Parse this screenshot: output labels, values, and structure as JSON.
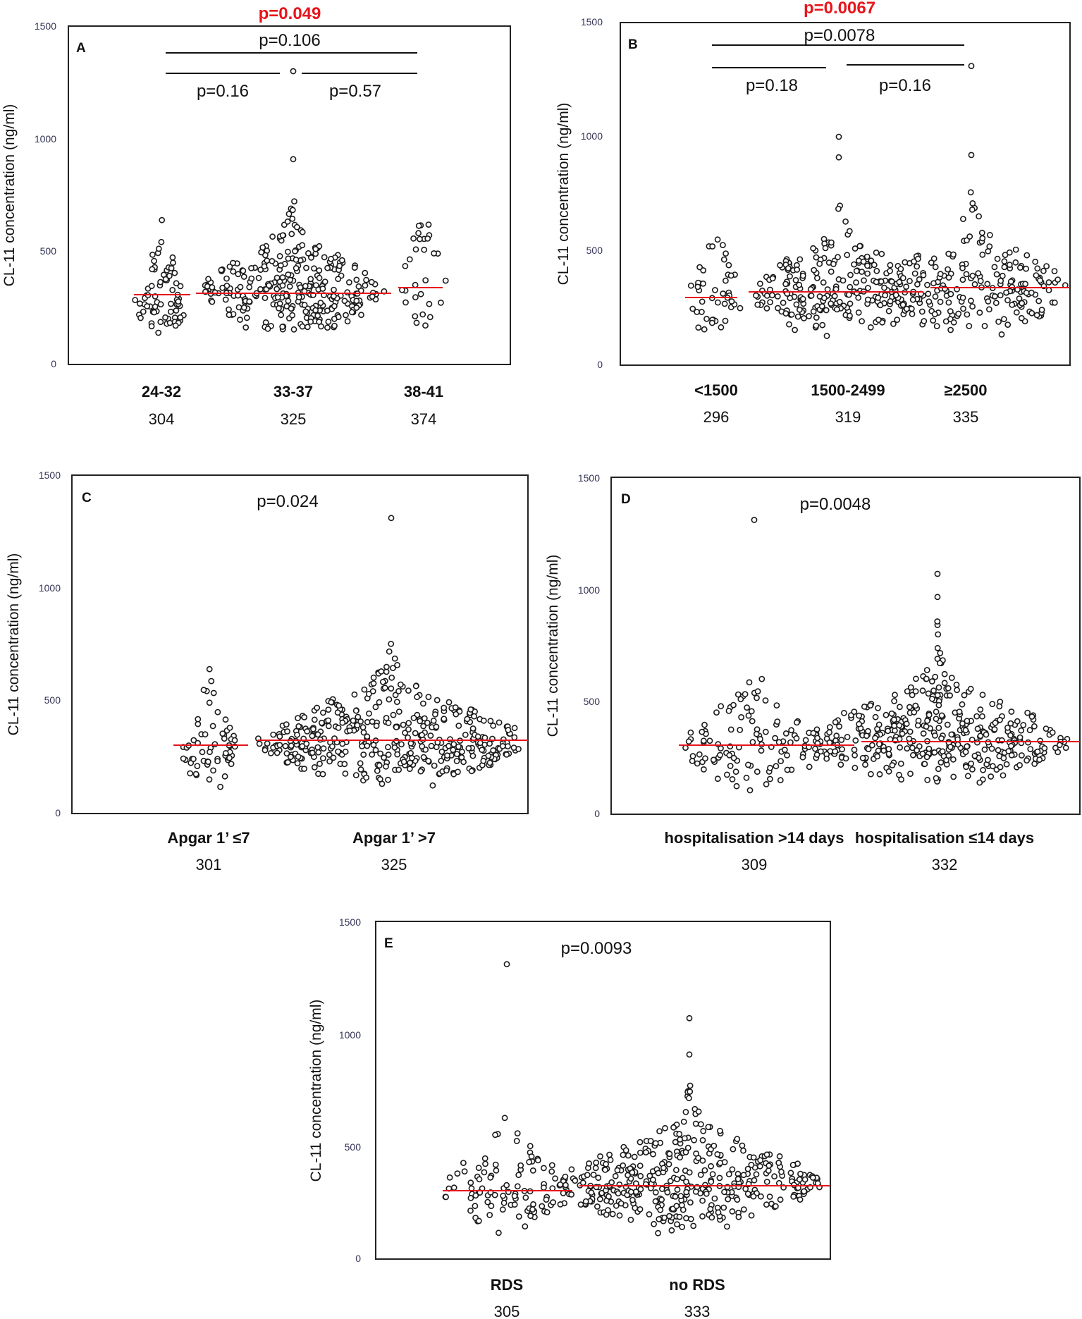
{
  "chart_data": [
    {
      "type": "scatter",
      "panel_label": "A",
      "ylabel": "CL-11 concentration (ng/ml)",
      "ylim": [
        0,
        1500
      ],
      "yticks": [
        "0",
        "500",
        "1000",
        "1500"
      ],
      "categories": [
        "24-32",
        "33-37",
        "38-41"
      ],
      "medians": [
        "304",
        "325",
        "374"
      ],
      "median_values": [
        304,
        325,
        374
      ],
      "n_points": [
        70,
        300,
        30
      ],
      "max_values": [
        640,
        1300,
        620
      ],
      "comparisons": [
        {
          "text": "p=0.049",
          "highlight": true
        },
        {
          "text": "p=0.106",
          "highlight": false
        },
        {
          "text": "p=0.16",
          "highlight": false
        },
        {
          "text": "p=0.57",
          "highlight": false
        }
      ]
    },
    {
      "type": "scatter",
      "panel_label": "B",
      "ylabel": "CL-11 concentration (ng/ml)",
      "ylim": [
        0,
        1500
      ],
      "yticks": [
        "0",
        "500",
        "1000",
        "1500"
      ],
      "categories": [
        "<1500",
        "1500-2499",
        "≥2500"
      ],
      "medians": [
        "296",
        "319",
        "335"
      ],
      "median_values": [
        296,
        319,
        335
      ],
      "n_points": [
        45,
        230,
        210
      ],
      "max_values": [
        550,
        1000,
        1310
      ],
      "comparisons": [
        {
          "text": "p=0.0067",
          "highlight": true
        },
        {
          "text": "p=0.0078",
          "highlight": false
        },
        {
          "text": "p=0.18",
          "highlight": false
        },
        {
          "text": "p=0.16",
          "highlight": false
        }
      ]
    },
    {
      "type": "scatter",
      "panel_label": "C",
      "ylabel": "CL-11 concentration (ng/ml)",
      "ylim": [
        0,
        1500
      ],
      "yticks": [
        "0",
        "500",
        "1000",
        "1500"
      ],
      "categories": [
        "Apgar 1’ ≤7",
        "Apgar 1’ >7"
      ],
      "medians": [
        "301",
        "325"
      ],
      "median_values": [
        301,
        325
      ],
      "n_points": [
        60,
        420
      ],
      "max_values": [
        640,
        1310
      ],
      "comparisons": [
        {
          "text": "p=0.024",
          "highlight": false
        }
      ]
    },
    {
      "type": "scatter",
      "panel_label": "D",
      "ylabel": "CL-11 concentration (ng/ml)",
      "ylim": [
        0,
        1500
      ],
      "yticks": [
        "0",
        "500",
        "1000",
        "1500"
      ],
      "categories": [
        "hospitalisation >14 days",
        "hospitalisation ≤14 days"
      ],
      "medians": [
        "309",
        "332"
      ],
      "median_values": [
        309,
        332
      ],
      "n_points": [
        110,
        400
      ],
      "max_values": [
        1310,
        1070
      ],
      "comparisons": [
        {
          "text": "p=0.0048",
          "highlight": false
        }
      ]
    },
    {
      "type": "scatter",
      "panel_label": "E",
      "ylabel": "CL-11 concentration (ng/ml)",
      "ylim": [
        0,
        1500
      ],
      "yticks": [
        "0",
        "500",
        "1000",
        "1500"
      ],
      "categories": [
        "RDS",
        "no RDS"
      ],
      "medians": [
        "305",
        "333"
      ],
      "median_values": [
        305,
        333
      ],
      "n_points": [
        100,
        400
      ],
      "max_values": [
        1310,
        1070
      ],
      "comparisons": [
        {
          "text": "p=0.0093",
          "highlight": false
        }
      ]
    }
  ]
}
